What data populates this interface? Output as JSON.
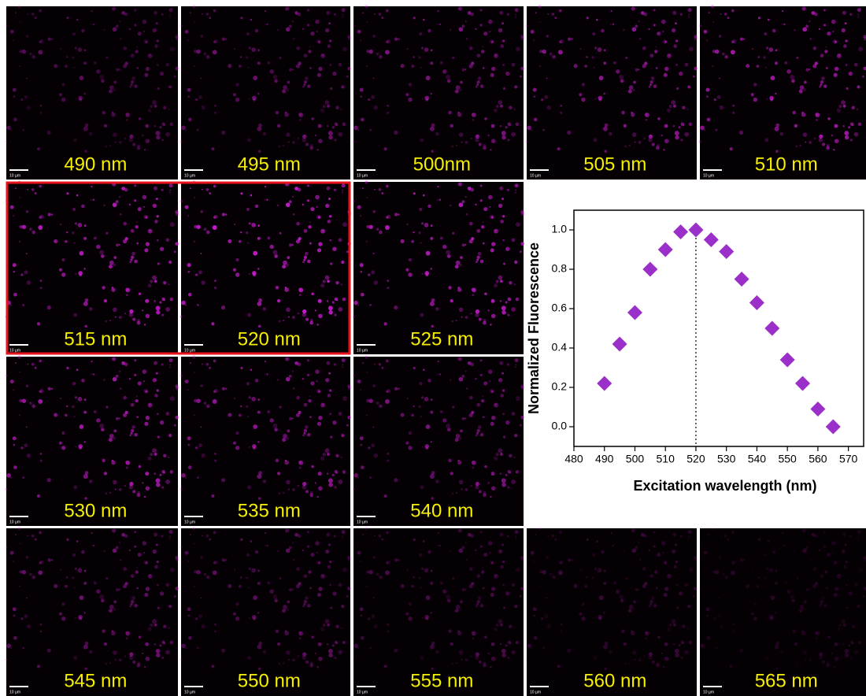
{
  "panels": [
    {
      "label": "490 nm",
      "scale_bar": "10 µm"
    },
    {
      "label": "495 nm",
      "scale_bar": "10 µm"
    },
    {
      "label": "500nm",
      "scale_bar": "10 µm"
    },
    {
      "label": "505 nm",
      "scale_bar": "10 µm"
    },
    {
      "label": "510 nm",
      "scale_bar": "10 µm"
    },
    {
      "label": "515 nm",
      "scale_bar": "10 µm"
    },
    {
      "label": "520 nm",
      "scale_bar": "10 µm"
    },
    {
      "label": "525 nm",
      "scale_bar": "10 µm"
    },
    {
      "label": "530 nm",
      "scale_bar": "10 µm"
    },
    {
      "label": "535 nm",
      "scale_bar": "10 µm"
    },
    {
      "label": "540 nm",
      "scale_bar": "10 µm"
    },
    {
      "label": "545 nm",
      "scale_bar": "10 µm"
    },
    {
      "label": "550 nm",
      "scale_bar": "10 µm"
    },
    {
      "label": "555 nm",
      "scale_bar": "10 µm"
    },
    {
      "label": "560 nm",
      "scale_bar": "10 µm"
    },
    {
      "label": "565 nm",
      "scale_bar": "10 µm"
    }
  ],
  "chart_data": {
    "type": "scatter",
    "x_label": "Excitation wavelength (nm)",
    "y_label": "Normalized Fluorescence",
    "x": [
      490,
      495,
      500,
      505,
      510,
      515,
      520,
      525,
      530,
      535,
      540,
      545,
      550,
      555,
      560,
      565
    ],
    "values": [
      0.22,
      0.42,
      0.58,
      0.8,
      0.9,
      0.99,
      1.0,
      0.95,
      0.89,
      0.75,
      0.63,
      0.5,
      0.34,
      0.22,
      0.09,
      0.0
    ],
    "color": "#9b2fc9",
    "xlim": [
      480,
      575
    ],
    "ylim": [
      -0.1,
      1.1
    ],
    "xticks": [
      480,
      490,
      500,
      510,
      520,
      530,
      540,
      550,
      560,
      570
    ],
    "yticks": [
      {
        "value": 0,
        "label": "0.0"
      },
      0.2,
      0.4,
      0.6,
      0.8,
      {
        "value": 1,
        "label": "1.0"
      }
    ],
    "vline_x": 520
  }
}
